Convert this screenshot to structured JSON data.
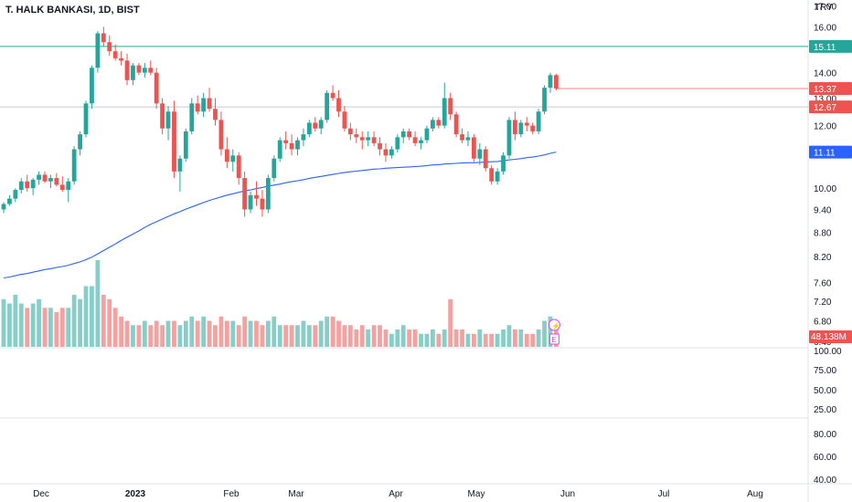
{
  "header": {
    "title": "T. HALK BANKASI, 1D, BIST",
    "currency": "TRY"
  },
  "colors": {
    "up": "#26a69a",
    "down": "#ef5350",
    "ma": "#2962ff",
    "resistance": "#26a69a",
    "grid": "#f0f3fa",
    "axis_text": "#131722"
  },
  "chart_data": {
    "type": "candlestick",
    "price_scale": "log",
    "price_axis_ticks": [
      "17.00",
      "16.00",
      "14.00",
      "13.00",
      "12.00",
      "10.00",
      "9.40",
      "8.80",
      "8.20",
      "7.60",
      "7.20",
      "6.80",
      "6.40"
    ],
    "price_labels": [
      {
        "name": "resistance",
        "text": "15.11",
        "value": 15.11,
        "color": "#26a69a"
      },
      {
        "name": "last-close",
        "text": "13.37",
        "value": 13.37,
        "color": "#ef5350"
      },
      {
        "name": "prev-level",
        "text": "12.67",
        "value": 12.67,
        "color": "#ef5350"
      },
      {
        "name": "moving-average",
        "text": "11.11",
        "value": 11.11,
        "color": "#2962ff"
      }
    ],
    "volume_label": "48.138M",
    "oscillator1_ticks": [
      "100.00",
      "75.00",
      "50.00",
      "25.00"
    ],
    "oscillator2_ticks": [
      "80.00",
      "60.00",
      "40.00"
    ],
    "time_axis": [
      "Dec",
      "2023",
      "Feb",
      "Mar",
      "Apr",
      "May",
      "Jun",
      "Jul",
      "Aug"
    ],
    "candles": [
      [
        9.4,
        9.6,
        9.3,
        9.55
      ],
      [
        9.55,
        9.8,
        9.5,
        9.7
      ],
      [
        9.7,
        10.0,
        9.6,
        9.95
      ],
      [
        9.95,
        10.3,
        9.85,
        10.2
      ],
      [
        10.2,
        10.4,
        9.9,
        10.0
      ],
      [
        10.0,
        10.3,
        9.8,
        10.25
      ],
      [
        10.25,
        10.5,
        10.1,
        10.4
      ],
      [
        10.4,
        10.5,
        10.15,
        10.2
      ],
      [
        10.2,
        10.4,
        10.0,
        10.3
      ],
      [
        10.3,
        10.45,
        10.05,
        10.1
      ],
      [
        10.1,
        10.35,
        9.9,
        9.95
      ],
      [
        9.95,
        10.3,
        9.6,
        10.2
      ],
      [
        10.2,
        11.3,
        10.1,
        11.2
      ],
      [
        11.2,
        11.8,
        11.0,
        11.7
      ],
      [
        11.7,
        12.9,
        11.6,
        12.8
      ],
      [
        12.8,
        14.3,
        12.6,
        14.2
      ],
      [
        14.2,
        15.8,
        14.0,
        15.7
      ],
      [
        15.7,
        16.0,
        15.1,
        15.3
      ],
      [
        15.3,
        15.6,
        14.7,
        14.9
      ],
      [
        14.9,
        15.2,
        14.5,
        14.6
      ],
      [
        14.6,
        14.9,
        14.3,
        14.5
      ],
      [
        14.5,
        14.8,
        13.5,
        13.7
      ],
      [
        13.7,
        14.4,
        13.5,
        14.3
      ],
      [
        14.3,
        14.4,
        13.9,
        14.0
      ],
      [
        14.0,
        14.4,
        13.8,
        14.2
      ],
      [
        14.2,
        14.5,
        13.9,
        14.0
      ],
      [
        14.0,
        14.2,
        12.6,
        12.8
      ],
      [
        12.8,
        13.0,
        11.7,
        11.9
      ],
      [
        11.9,
        12.7,
        11.5,
        12.5
      ],
      [
        12.5,
        12.9,
        10.3,
        10.5
      ],
      [
        10.5,
        11.0,
        9.9,
        10.9
      ],
      [
        10.9,
        11.9,
        10.8,
        11.8
      ],
      [
        11.8,
        13.0,
        11.7,
        12.8
      ],
      [
        12.8,
        13.1,
        12.4,
        12.5
      ],
      [
        12.5,
        13.2,
        12.3,
        13.0
      ],
      [
        13.0,
        13.4,
        12.5,
        12.6
      ],
      [
        12.6,
        13.0,
        12.0,
        12.2
      ],
      [
        12.2,
        12.5,
        11.0,
        11.2
      ],
      [
        11.2,
        11.6,
        10.6,
        10.8
      ],
      [
        10.8,
        11.2,
        10.5,
        11.0
      ],
      [
        11.0,
        11.1,
        10.1,
        10.3
      ],
      [
        10.3,
        10.5,
        9.2,
        9.4
      ],
      [
        9.4,
        9.9,
        9.3,
        9.8
      ],
      [
        9.8,
        10.2,
        9.5,
        9.7
      ],
      [
        9.7,
        9.95,
        9.2,
        9.4
      ],
      [
        9.4,
        10.4,
        9.3,
        10.3
      ],
      [
        10.3,
        11.0,
        10.2,
        10.9
      ],
      [
        10.9,
        11.6,
        10.8,
        11.5
      ],
      [
        11.5,
        11.8,
        11.2,
        11.4
      ],
      [
        11.4,
        11.7,
        11.0,
        11.2
      ],
      [
        11.2,
        11.6,
        11.0,
        11.5
      ],
      [
        11.5,
        11.9,
        11.3,
        11.7
      ],
      [
        11.7,
        12.2,
        11.6,
        12.1
      ],
      [
        12.1,
        12.3,
        11.8,
        11.9
      ],
      [
        11.9,
        12.3,
        11.7,
        12.2
      ],
      [
        12.2,
        13.3,
        12.1,
        13.2
      ],
      [
        13.2,
        13.5,
        12.9,
        13.0
      ],
      [
        13.0,
        13.3,
        12.3,
        12.5
      ],
      [
        12.5,
        12.7,
        11.8,
        11.9
      ],
      [
        11.9,
        12.1,
        11.5,
        11.7
      ],
      [
        11.7,
        11.9,
        11.4,
        11.6
      ],
      [
        11.6,
        11.8,
        11.2,
        11.5
      ],
      [
        11.5,
        11.8,
        11.3,
        11.6
      ],
      [
        11.6,
        11.8,
        11.3,
        11.4
      ],
      [
        11.4,
        11.6,
        11.0,
        11.2
      ],
      [
        11.2,
        11.4,
        10.8,
        11.0
      ],
      [
        11.0,
        11.3,
        10.9,
        11.2
      ],
      [
        11.2,
        11.7,
        11.1,
        11.6
      ],
      [
        11.6,
        11.9,
        11.4,
        11.8
      ],
      [
        11.8,
        11.9,
        11.5,
        11.6
      ],
      [
        11.6,
        11.8,
        11.3,
        11.4
      ],
      [
        11.4,
        11.6,
        11.2,
        11.5
      ],
      [
        11.5,
        12.0,
        11.4,
        11.9
      ],
      [
        11.9,
        12.3,
        11.8,
        12.2
      ],
      [
        12.2,
        12.3,
        11.9,
        12.0
      ],
      [
        12.0,
        13.6,
        11.9,
        13.0
      ],
      [
        13.0,
        13.2,
        12.2,
        12.4
      ],
      [
        12.4,
        12.5,
        11.6,
        11.7
      ],
      [
        11.7,
        11.9,
        11.4,
        11.5
      ],
      [
        11.5,
        11.8,
        11.3,
        11.6
      ],
      [
        11.6,
        11.7,
        10.8,
        10.9
      ],
      [
        10.9,
        11.4,
        10.7,
        11.2
      ],
      [
        11.2,
        11.3,
        10.5,
        10.6
      ],
      [
        10.6,
        10.7,
        10.1,
        10.2
      ],
      [
        10.2,
        10.6,
        10.1,
        10.5
      ],
      [
        10.5,
        11.1,
        10.4,
        11.0
      ],
      [
        11.0,
        12.3,
        10.9,
        12.2
      ],
      [
        12.2,
        12.5,
        11.5,
        11.7
      ],
      [
        11.7,
        12.2,
        11.6,
        12.1
      ],
      [
        12.1,
        12.3,
        11.8,
        12.0
      ],
      [
        12.0,
        12.1,
        11.7,
        11.8
      ],
      [
        11.8,
        12.6,
        11.7,
        12.5
      ],
      [
        12.5,
        13.5,
        12.4,
        13.4
      ],
      [
        13.4,
        14.0,
        13.2,
        13.9
      ],
      [
        13.9,
        13.95,
        13.3,
        13.37
      ]
    ],
    "moving_average": [
      7.7,
      7.72,
      7.75,
      7.78,
      7.8,
      7.83,
      7.86,
      7.89,
      7.91,
      7.94,
      7.96,
      7.99,
      8.03,
      8.07,
      8.12,
      8.18,
      8.26,
      8.34,
      8.42,
      8.5,
      8.59,
      8.67,
      8.75,
      8.83,
      8.92,
      9.0,
      9.07,
      9.14,
      9.21,
      9.28,
      9.34,
      9.41,
      9.47,
      9.53,
      9.59,
      9.65,
      9.7,
      9.75,
      9.8,
      9.84,
      9.88,
      9.92,
      9.95,
      9.99,
      10.02,
      10.06,
      10.09,
      10.12,
      10.16,
      10.19,
      10.22,
      10.25,
      10.29,
      10.32,
      10.35,
      10.38,
      10.41,
      10.44,
      10.47,
      10.49,
      10.51,
      10.53,
      10.55,
      10.57,
      10.58,
      10.6,
      10.61,
      10.62,
      10.63,
      10.64,
      10.65,
      10.66,
      10.68,
      10.7,
      10.71,
      10.73,
      10.74,
      10.75,
      10.76,
      10.77,
      10.77,
      10.78,
      10.79,
      10.8,
      10.81,
      10.83,
      10.86,
      10.88,
      10.9,
      10.93,
      10.95,
      10.98,
      11.02,
      11.07,
      11.11
    ],
    "volume": [
      0.55,
      0.5,
      0.6,
      0.5,
      0.45,
      0.5,
      0.55,
      0.45,
      0.45,
      0.4,
      0.45,
      0.45,
      0.6,
      0.55,
      0.7,
      0.7,
      1.0,
      0.6,
      0.55,
      0.45,
      0.35,
      0.3,
      0.25,
      0.25,
      0.3,
      0.25,
      0.3,
      0.25,
      0.3,
      0.3,
      0.25,
      0.3,
      0.35,
      0.3,
      0.35,
      0.3,
      0.25,
      0.35,
      0.3,
      0.3,
      0.25,
      0.35,
      0.3,
      0.3,
      0.25,
      0.3,
      0.35,
      0.25,
      0.25,
      0.25,
      0.25,
      0.3,
      0.25,
      0.25,
      0.3,
      0.35,
      0.35,
      0.3,
      0.25,
      0.25,
      0.2,
      0.25,
      0.2,
      0.25,
      0.25,
      0.2,
      0.15,
      0.2,
      0.25,
      0.2,
      0.2,
      0.15,
      0.15,
      0.2,
      0.15,
      0.2,
      0.55,
      0.2,
      0.2,
      0.15,
      0.15,
      0.2,
      0.15,
      0.15,
      0.15,
      0.2,
      0.25,
      0.2,
      0.2,
      0.15,
      0.15,
      0.2,
      0.3,
      0.35,
      0.3
    ]
  }
}
